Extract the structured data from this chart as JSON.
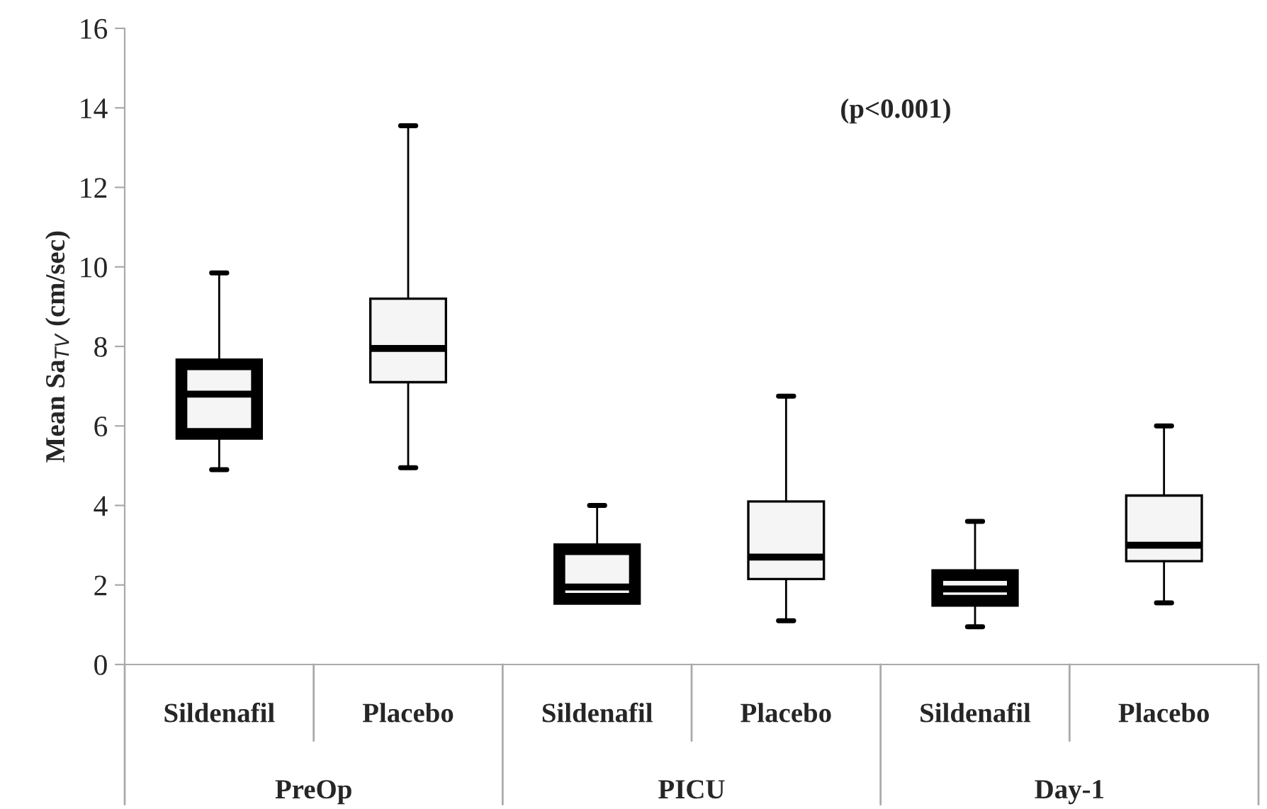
{
  "chart_data": {
    "type": "box",
    "ylabel": "Mean Sa$_{TV}$ (cm/sec)",
    "categories": [
      "Sildenafil",
      "Placebo",
      "Sildenafil",
      "Placebo",
      "Sildenafil",
      "Placebo"
    ],
    "annotations": [
      "(p<0.001)",
      "PreOp",
      "PICU",
      "Day-1"
    ],
    "series": [
      {
        "color": "#f5f5f5",
        "boxes": [
          {
            "low": 4.9,
            "q1": 5.8,
            "median": 6.8,
            "q3": 7.55,
            "high": 9.85
          },
          null,
          {
            "low": 1.65,
            "q1": 1.65,
            "median": 1.95,
            "q3": 2.9,
            "high": 4.0
          },
          null,
          {
            "low": 0.95,
            "q1": 1.6,
            "median": 1.9,
            "q3": 2.25,
            "high": 3.6
          },
          null
        ]
      },
      {
        "color": "#f5f5f5",
        "boxes": [
          null,
          {
            "low": 4.95,
            "q1": 7.1,
            "median": 7.95,
            "q3": 9.2,
            "high": 13.55
          },
          null,
          {
            "low": 1.1,
            "q1": 2.15,
            "median": 2.7,
            "q3": 4.1,
            "high": 6.75
          },
          null,
          {
            "low": 1.55,
            "q1": 2.6,
            "median": 3.0,
            "q3": 4.25,
            "high": 6.0
          }
        ]
      }
    ],
    "ylim": [
      0,
      16
    ],
    "yticks": [
      0,
      2,
      4,
      6,
      8,
      10,
      12,
      14,
      16
    ],
    "grid": false,
    "legend": false
  }
}
